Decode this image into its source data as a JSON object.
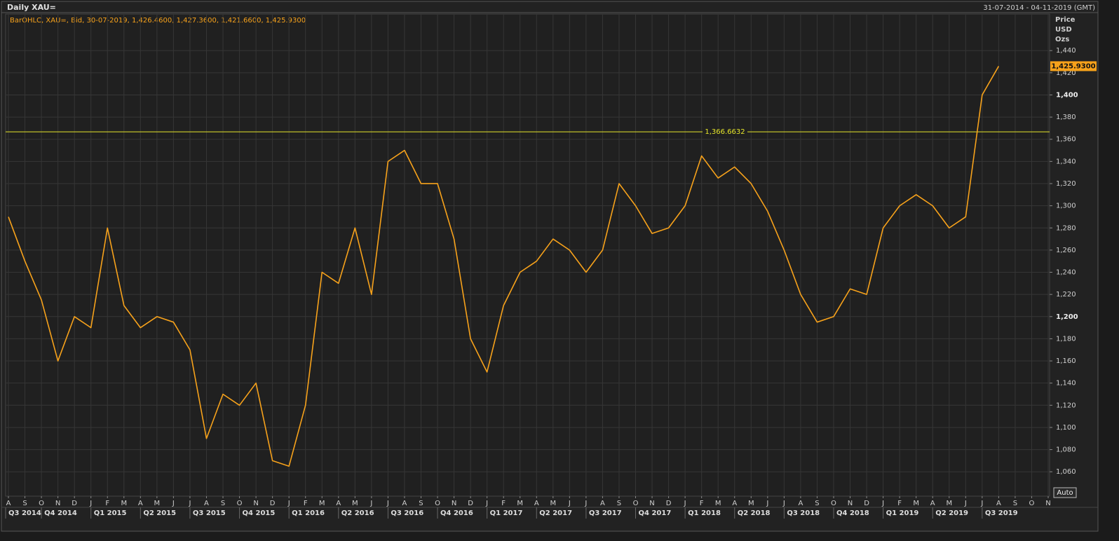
{
  "chart_data": {
    "type": "line",
    "title": "Daily XAU=",
    "date_range": "31-07-2014 - 04-11-2019 (GMT)",
    "legend_text": "BarOHLC, XAU=, Bid, 30-07-2019, 1,426.4600, 1,427.3600, 1,421.6600, 1,425.9300",
    "y_axis_label": [
      "Price",
      "USD",
      "Ozs"
    ],
    "auto_button": "Auto",
    "color": "#f7a21b",
    "x": [
      "2014-08",
      "2014-09",
      "2014-10",
      "2014-11",
      "2014-12",
      "2015-01",
      "2015-02",
      "2015-03",
      "2015-04",
      "2015-05",
      "2015-06",
      "2015-07",
      "2015-08",
      "2015-09",
      "2015-10",
      "2015-11",
      "2015-12",
      "2016-01",
      "2016-02",
      "2016-03",
      "2016-04",
      "2016-05",
      "2016-06",
      "2016-07",
      "2016-08",
      "2016-09",
      "2016-10",
      "2016-11",
      "2016-12",
      "2017-01",
      "2017-02",
      "2017-03",
      "2017-04",
      "2017-05",
      "2017-06",
      "2017-07",
      "2017-08",
      "2017-09",
      "2017-10",
      "2017-11",
      "2017-12",
      "2018-01",
      "2018-02",
      "2018-03",
      "2018-04",
      "2018-05",
      "2018-06",
      "2018-07",
      "2018-08",
      "2018-09",
      "2018-10",
      "2018-11",
      "2018-12",
      "2019-01",
      "2019-02",
      "2019-03",
      "2019-04",
      "2019-05",
      "2019-06",
      "2019-07",
      "2019-08"
    ],
    "values": [
      1290,
      1250,
      1215,
      1160,
      1200,
      1190,
      1280,
      1210,
      1190,
      1200,
      1195,
      1170,
      1090,
      1130,
      1120,
      1140,
      1070,
      1065,
      1120,
      1240,
      1230,
      1280,
      1220,
      1340,
      1350,
      1320,
      1320,
      1270,
      1180,
      1150,
      1210,
      1240,
      1250,
      1270,
      1260,
      1240,
      1260,
      1320,
      1300,
      1275,
      1280,
      1300,
      1345,
      1325,
      1335,
      1320,
      1295,
      1260,
      1220,
      1195,
      1200,
      1225,
      1220,
      1280,
      1300,
      1310,
      1300,
      1280,
      1290,
      1400,
      1425.93
    ],
    "last_value_label": "1,425.9300",
    "level_line": {
      "value": 1366.6632,
      "label": "1,366.6632",
      "color": "#e6e62a"
    },
    "xlim": [
      "2014-08",
      "2019-11"
    ],
    "ylim": [
      1038,
      1473
    ],
    "yticks": [
      {
        "value": 1060,
        "label": "1,060"
      },
      {
        "value": 1080,
        "label": "1,080"
      },
      {
        "value": 1100,
        "label": "1,100"
      },
      {
        "value": 1120,
        "label": "1,120"
      },
      {
        "value": 1140,
        "label": "1,140"
      },
      {
        "value": 1160,
        "label": "1,160"
      },
      {
        "value": 1180,
        "label": "1,180"
      },
      {
        "value": 1200,
        "label": "1,200"
      },
      {
        "value": 1220,
        "label": "1,220"
      },
      {
        "value": 1240,
        "label": "1,240"
      },
      {
        "value": 1260,
        "label": "1,260"
      },
      {
        "value": 1280,
        "label": "1,280"
      },
      {
        "value": 1300,
        "label": "1,300"
      },
      {
        "value": 1320,
        "label": "1,320"
      },
      {
        "value": 1340,
        "label": "1,340"
      },
      {
        "value": 1360,
        "label": "1,360"
      },
      {
        "value": 1380,
        "label": "1,380"
      },
      {
        "value": 1400,
        "label": "1,400"
      },
      {
        "value": 1420,
        "label": "1,420"
      },
      {
        "value": 1440,
        "label": "1,440"
      }
    ],
    "xticks": [
      {
        "value": "2014-08",
        "label": "A"
      },
      {
        "value": "2014-09",
        "label": "S"
      },
      {
        "value": "2014-10",
        "label": "O"
      },
      {
        "value": "2014-11",
        "label": "N"
      },
      {
        "value": "2014-12",
        "label": "D"
      },
      {
        "value": "2015-01",
        "label": "J"
      },
      {
        "value": "2015-02",
        "label": "F"
      },
      {
        "value": "2015-03",
        "label": "M"
      },
      {
        "value": "2015-04",
        "label": "A"
      },
      {
        "value": "2015-05",
        "label": "M"
      },
      {
        "value": "2015-06",
        "label": "J"
      },
      {
        "value": "2015-07",
        "label": "J"
      },
      {
        "value": "2015-08",
        "label": "A"
      },
      {
        "value": "2015-09",
        "label": "S"
      },
      {
        "value": "2015-10",
        "label": "O"
      },
      {
        "value": "2015-11",
        "label": "N"
      },
      {
        "value": "2015-12",
        "label": "D"
      },
      {
        "value": "2016-01",
        "label": "J"
      },
      {
        "value": "2016-02",
        "label": "F"
      },
      {
        "value": "2016-03",
        "label": "M"
      },
      {
        "value": "2016-04",
        "label": "A"
      },
      {
        "value": "2016-05",
        "label": "M"
      },
      {
        "value": "2016-06",
        "label": "J"
      },
      {
        "value": "2016-07",
        "label": "J"
      },
      {
        "value": "2016-08",
        "label": "A"
      },
      {
        "value": "2016-09",
        "label": "S"
      },
      {
        "value": "2016-10",
        "label": "O"
      },
      {
        "value": "2016-11",
        "label": "N"
      },
      {
        "value": "2016-12",
        "label": "D"
      },
      {
        "value": "2017-01",
        "label": "J"
      },
      {
        "value": "2017-02",
        "label": "F"
      },
      {
        "value": "2017-03",
        "label": "M"
      },
      {
        "value": "2017-04",
        "label": "A"
      },
      {
        "value": "2017-05",
        "label": "M"
      },
      {
        "value": "2017-06",
        "label": "J"
      },
      {
        "value": "2017-07",
        "label": "J"
      },
      {
        "value": "2017-08",
        "label": "A"
      },
      {
        "value": "2017-09",
        "label": "S"
      },
      {
        "value": "2017-10",
        "label": "O"
      },
      {
        "value": "2017-11",
        "label": "N"
      },
      {
        "value": "2017-12",
        "label": "D"
      },
      {
        "value": "2018-01",
        "label": "J"
      },
      {
        "value": "2018-02",
        "label": "F"
      },
      {
        "value": "2018-03",
        "label": "M"
      },
      {
        "value": "2018-04",
        "label": "A"
      },
      {
        "value": "2018-05",
        "label": "M"
      },
      {
        "value": "2018-06",
        "label": "J"
      },
      {
        "value": "2018-07",
        "label": "J"
      },
      {
        "value": "2018-08",
        "label": "A"
      },
      {
        "value": "2018-09",
        "label": "S"
      },
      {
        "value": "2018-10",
        "label": "O"
      },
      {
        "value": "2018-11",
        "label": "N"
      },
      {
        "value": "2018-12",
        "label": "D"
      },
      {
        "value": "2019-01",
        "label": "J"
      },
      {
        "value": "2019-02",
        "label": "F"
      },
      {
        "value": "2019-03",
        "label": "M"
      },
      {
        "value": "2019-04",
        "label": "A"
      },
      {
        "value": "2019-05",
        "label": "M"
      },
      {
        "value": "2019-06",
        "label": "J"
      },
      {
        "value": "2019-07",
        "label": "J"
      },
      {
        "value": "2019-08",
        "label": "A"
      },
      {
        "value": "2019-09",
        "label": "S"
      },
      {
        "value": "2019-10",
        "label": "O"
      },
      {
        "value": "2019-11",
        "label": "N"
      }
    ],
    "quarters": [
      {
        "start": "2014-07",
        "label": "Q3 2014"
      },
      {
        "start": "2014-10",
        "label": "Q4 2014"
      },
      {
        "start": "2015-01",
        "label": "Q1 2015"
      },
      {
        "start": "2015-04",
        "label": "Q2 2015"
      },
      {
        "start": "2015-07",
        "label": "Q3 2015"
      },
      {
        "start": "2015-10",
        "label": "Q4 2015"
      },
      {
        "start": "2016-01",
        "label": "Q1 2016"
      },
      {
        "start": "2016-04",
        "label": "Q2 2016"
      },
      {
        "start": "2016-07",
        "label": "Q3 2016"
      },
      {
        "start": "2016-10",
        "label": "Q4 2016"
      },
      {
        "start": "2017-01",
        "label": "Q1 2017"
      },
      {
        "start": "2017-04",
        "label": "Q2 2017"
      },
      {
        "start": "2017-07",
        "label": "Q3 2017"
      },
      {
        "start": "2017-10",
        "label": "Q4 2017"
      },
      {
        "start": "2018-01",
        "label": "Q1 2018"
      },
      {
        "start": "2018-04",
        "label": "Q2 2018"
      },
      {
        "start": "2018-07",
        "label": "Q3 2018"
      },
      {
        "start": "2018-10",
        "label": "Q4 2018"
      },
      {
        "start": "2019-01",
        "label": "Q1 2019"
      },
      {
        "start": "2019-04",
        "label": "Q2 2019"
      },
      {
        "start": "2019-07",
        "label": "Q3 2019"
      }
    ],
    "grid": true
  }
}
